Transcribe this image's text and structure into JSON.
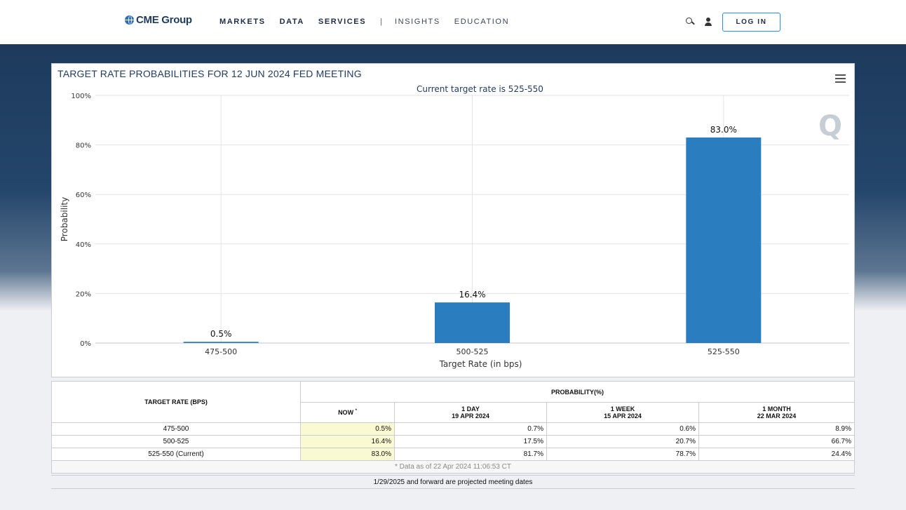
{
  "header": {
    "logo": "CME Group",
    "nav": {
      "markets": "MARKETS",
      "data": "DATA",
      "services": "SERVICES",
      "separator": "|",
      "insights": "INSIGHTS",
      "education": "EDUCATION"
    },
    "login_label": "LOG IN"
  },
  "chart_data": {
    "type": "bar",
    "title": "TARGET RATE PROBABILITIES FOR 12 JUN 2024 FED MEETING",
    "subtitle": "Current target rate is 525-550",
    "xlabel": "Target Rate (in bps)",
    "ylabel": "Probability",
    "categories": [
      "475-500",
      "500-525",
      "525-550"
    ],
    "values": [
      0.5,
      16.4,
      83.0
    ],
    "data_labels": [
      "0.5%",
      "16.4%",
      "83.0%"
    ],
    "ylim": [
      0,
      100
    ],
    "y_ticks": [
      "0%",
      "20%",
      "40%",
      "60%",
      "80%",
      "100%"
    ],
    "grid": true,
    "colors": {
      "bar": "#2a7ebf"
    }
  },
  "table": {
    "col_target": "TARGET RATE (BPS)",
    "col_probability": "PROBABILITY(%)",
    "col_now": "NOW",
    "col_now_mark": "*",
    "col_1day": "1 DAY",
    "col_1day_date": "19 APR 2024",
    "col_1week": "1 WEEK",
    "col_1week_date": "15 APR 2024",
    "col_1month": "1 MONTH",
    "col_1month_date": "22 MAR 2024",
    "rows": [
      {
        "rate": "475-500",
        "now": "0.5%",
        "day": "0.7%",
        "week": "0.6%",
        "month": "8.9%"
      },
      {
        "rate": "500-525",
        "now": "16.4%",
        "day": "17.5%",
        "week": "20.7%",
        "month": "66.7%"
      },
      {
        "rate": "525-550 (Current)",
        "now": "83.0%",
        "day": "81.7%",
        "week": "78.7%",
        "month": "24.4%"
      }
    ],
    "data_note": "* Data as of 22 Apr 2024 11:06:53 CT"
  },
  "footer_note": "1/29/2025 and forward are projected meeting dates"
}
